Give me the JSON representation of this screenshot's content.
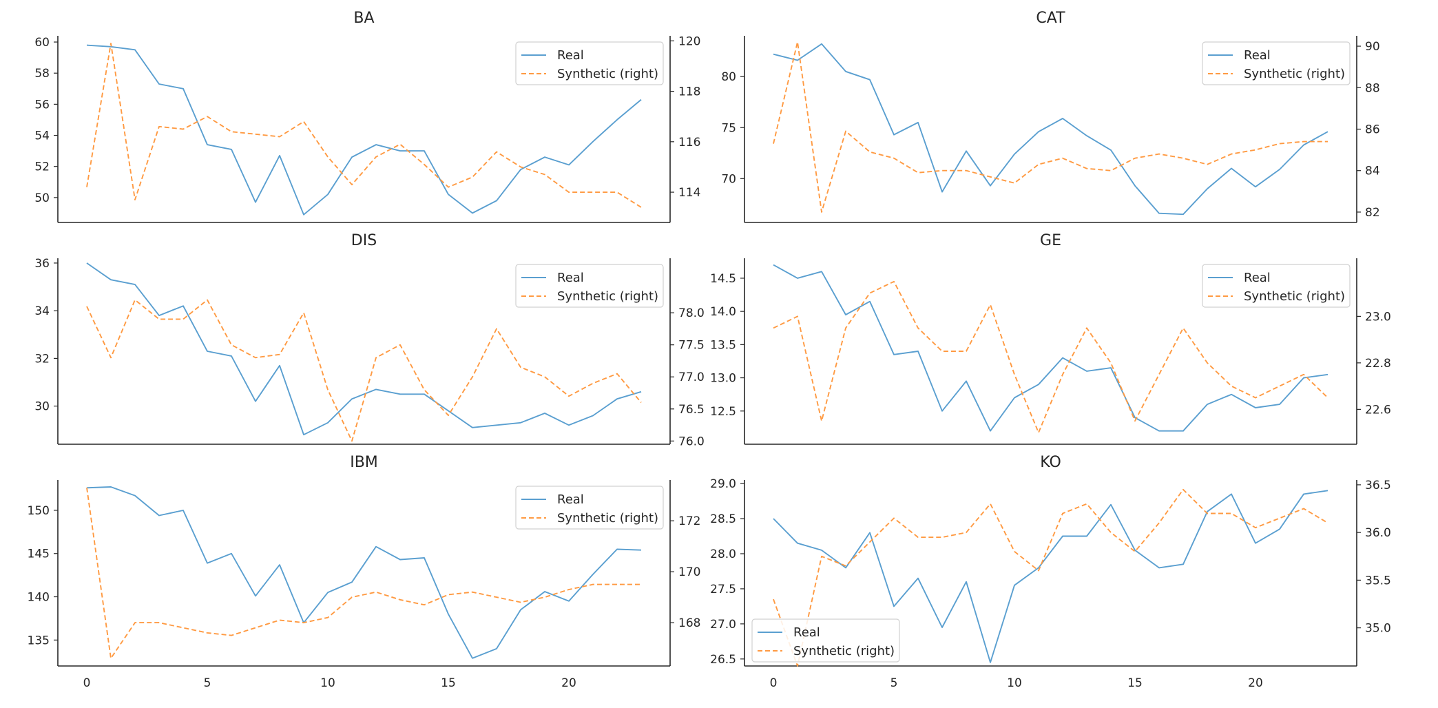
{
  "colors": {
    "real": "#5a9fd0",
    "synthetic": "#ff9a42",
    "axis": "#262626",
    "legend_border": "#d0d0d0"
  },
  "legend_labels": {
    "real": "Real",
    "synthetic": "Synthetic (right)"
  },
  "chart_data": [
    {
      "type": "line",
      "title": "BA",
      "legend_loc": "upper right",
      "x": [
        0,
        1,
        2,
        3,
        4,
        5,
        6,
        7,
        8,
        9,
        10,
        11,
        12,
        13,
        14,
        15,
        16,
        17,
        18,
        19,
        20,
        21,
        22,
        23
      ],
      "xlim": [
        -1.2,
        24.2
      ],
      "xticks": [
        0,
        5,
        10,
        15,
        20
      ],
      "left": {
        "ylim": [
          48.4,
          60.4
        ],
        "ticks": [
          50,
          52,
          54,
          56,
          58,
          60
        ],
        "tick_labels": [
          "50",
          "52",
          "54",
          "56",
          "58",
          "60"
        ]
      },
      "right": {
        "ylim": [
          112.8,
          120.2
        ],
        "ticks": [
          114,
          116,
          118,
          120
        ],
        "tick_labels": [
          "114",
          "116",
          "118",
          "120"
        ]
      },
      "series": [
        {
          "name": "Real",
          "axis": "left",
          "style": "solid",
          "values": [
            59.8,
            59.7,
            59.5,
            57.3,
            57.0,
            53.4,
            53.1,
            49.7,
            52.7,
            48.9,
            50.2,
            52.6,
            53.4,
            53.0,
            53.0,
            50.2,
            49.0,
            49.8,
            51.8,
            52.6,
            52.1,
            53.6,
            55.0,
            56.3
          ]
        },
        {
          "name": "Synthetic (right)",
          "axis": "left",
          "style": "dashed",
          "axis_override": "right",
          "values": [
            114.2,
            119.9,
            113.7,
            116.6,
            116.5,
            117.0,
            116.4,
            116.3,
            116.2,
            116.8,
            115.4,
            114.3,
            115.4,
            115.9,
            115.1,
            114.2,
            114.6,
            115.6,
            115.0,
            114.7,
            114.0,
            114.0,
            114.0,
            113.4
          ]
        }
      ]
    },
    {
      "type": "line",
      "title": "CAT",
      "legend_loc": "upper right",
      "x": [
        0,
        1,
        2,
        3,
        4,
        5,
        6,
        7,
        8,
        9,
        10,
        11,
        12,
        13,
        14,
        15,
        16,
        17,
        18,
        19,
        20,
        21,
        22,
        23
      ],
      "xlim": [
        -1.2,
        24.2
      ],
      "xticks": [
        0,
        5,
        10,
        15,
        20
      ],
      "left": {
        "ylim": [
          65.7,
          84.0
        ],
        "ticks": [
          70,
          75,
          80
        ],
        "tick_labels": [
          "70",
          "75",
          "80"
        ]
      },
      "right": {
        "ylim": [
          81.5,
          90.5
        ],
        "ticks": [
          82,
          84,
          86,
          88,
          90
        ],
        "tick_labels": [
          "82",
          "84",
          "86",
          "88",
          "90"
        ]
      },
      "series": [
        {
          "name": "Real",
          "axis": "left",
          "style": "solid",
          "values": [
            82.2,
            81.6,
            83.2,
            80.5,
            79.7,
            74.3,
            75.5,
            68.7,
            72.7,
            69.3,
            72.4,
            74.6,
            75.9,
            74.2,
            72.8,
            69.3,
            66.6,
            66.5,
            69.0,
            71.0,
            69.2,
            70.9,
            73.3,
            74.6
          ]
        },
        {
          "name": "Synthetic (right)",
          "axis": "right",
          "style": "dashed",
          "values": [
            85.3,
            90.2,
            82.0,
            85.9,
            84.9,
            84.6,
            83.9,
            84.0,
            84.0,
            83.7,
            83.4,
            84.3,
            84.6,
            84.1,
            84.0,
            84.6,
            84.8,
            84.6,
            84.3,
            84.8,
            85.0,
            85.3,
            85.4,
            85.4
          ]
        }
      ]
    },
    {
      "type": "line",
      "title": "DIS",
      "legend_loc": "upper right",
      "x": [
        0,
        1,
        2,
        3,
        4,
        5,
        6,
        7,
        8,
        9,
        10,
        11,
        12,
        13,
        14,
        15,
        16,
        17,
        18,
        19,
        20,
        21,
        22,
        23
      ],
      "xlim": [
        -1.2,
        24.2
      ],
      "xticks": [
        0,
        5,
        10,
        15,
        20
      ],
      "left": {
        "ylim": [
          28.4,
          36.2
        ],
        "ticks": [
          30,
          32,
          34,
          36
        ],
        "tick_labels": [
          "30",
          "32",
          "34",
          "36"
        ]
      },
      "right": {
        "ylim": [
          75.95,
          78.85
        ],
        "ticks": [
          76.0,
          76.5,
          77.0,
          77.5,
          78.0
        ],
        "tick_labels": [
          "76.0",
          "76.5",
          "77.0",
          "77.5",
          "78.0"
        ]
      },
      "series": [
        {
          "name": "Real",
          "axis": "left",
          "style": "solid",
          "values": [
            36.0,
            35.3,
            35.1,
            33.8,
            34.2,
            32.3,
            32.1,
            30.2,
            31.7,
            28.8,
            29.3,
            30.3,
            30.7,
            30.5,
            30.5,
            29.8,
            29.1,
            29.2,
            29.3,
            29.7,
            29.2,
            29.6,
            30.3,
            30.6
          ]
        },
        {
          "name": "Synthetic (right)",
          "axis": "right",
          "style": "dashed",
          "values": [
            78.1,
            77.3,
            78.2,
            77.9,
            77.9,
            78.2,
            77.5,
            77.3,
            77.35,
            78.0,
            76.8,
            76.0,
            77.3,
            77.5,
            76.8,
            76.4,
            77.0,
            77.75,
            77.15,
            77.0,
            76.7,
            76.9,
            77.05,
            76.6
          ]
        }
      ]
    },
    {
      "type": "line",
      "title": "GE",
      "legend_loc": "upper right",
      "x": [
        0,
        1,
        2,
        3,
        4,
        5,
        6,
        7,
        8,
        9,
        10,
        11,
        12,
        13,
        14,
        15,
        16,
        17,
        18,
        19,
        20,
        21,
        22,
        23
      ],
      "xlim": [
        -1.2,
        24.2
      ],
      "xticks": [
        0,
        5,
        10,
        15,
        20
      ],
      "left": {
        "ylim": [
          12.0,
          14.8
        ],
        "ticks": [
          12.5,
          13.0,
          13.5,
          14.0,
          14.5
        ],
        "tick_labels": [
          "12.5",
          "13.0",
          "13.5",
          "14.0",
          "14.5"
        ]
      },
      "right": {
        "ylim": [
          22.45,
          23.25
        ],
        "ticks": [
          22.6,
          22.8,
          23.0
        ],
        "tick_labels": [
          "22.6",
          "22.8",
          "23.0"
        ]
      },
      "series": [
        {
          "name": "Real",
          "axis": "left",
          "style": "solid",
          "values": [
            14.7,
            14.5,
            14.6,
            13.95,
            14.15,
            13.35,
            13.4,
            12.5,
            12.95,
            12.2,
            12.7,
            12.9,
            13.3,
            13.1,
            13.15,
            12.4,
            12.2,
            12.2,
            12.6,
            12.75,
            12.55,
            12.6,
            13.0,
            13.05
          ]
        },
        {
          "name": "Synthetic (right)",
          "axis": "right",
          "style": "dashed",
          "values": [
            22.95,
            23.0,
            22.55,
            22.95,
            23.1,
            23.15,
            22.95,
            22.85,
            22.85,
            23.05,
            22.75,
            22.5,
            22.75,
            22.95,
            22.8,
            22.55,
            22.75,
            22.95,
            22.8,
            22.7,
            22.65,
            22.7,
            22.75,
            22.65
          ]
        }
      ]
    },
    {
      "type": "line",
      "title": "IBM",
      "legend_loc": "upper right",
      "x": [
        0,
        1,
        2,
        3,
        4,
        5,
        6,
        7,
        8,
        9,
        10,
        11,
        12,
        13,
        14,
        15,
        16,
        17,
        18,
        19,
        20,
        21,
        22,
        23
      ],
      "xlim": [
        -1.2,
        24.2
      ],
      "xticks": [
        0,
        5,
        10,
        15,
        20
      ],
      "left": {
        "ylim": [
          132.0,
          153.5
        ],
        "ticks": [
          135,
          140,
          145,
          150
        ],
        "tick_labels": [
          "135",
          "140",
          "145",
          "150"
        ]
      },
      "right": {
        "ylim": [
          166.3,
          173.6
        ],
        "ticks": [
          168,
          170,
          172
        ],
        "tick_labels": [
          "168",
          "170",
          "172"
        ]
      },
      "series": [
        {
          "name": "Real",
          "axis": "left",
          "style": "solid",
          "values": [
            152.6,
            152.7,
            151.7,
            149.4,
            150.0,
            143.9,
            145.0,
            140.1,
            143.7,
            137.0,
            140.5,
            141.7,
            145.8,
            144.3,
            144.5,
            138.0,
            132.9,
            134.0,
            138.5,
            140.6,
            139.5,
            142.6,
            145.5,
            145.4
          ]
        },
        {
          "name": "Synthetic (right)",
          "axis": "right",
          "style": "dashed",
          "values": [
            173.3,
            166.6,
            168.0,
            168.0,
            167.8,
            167.6,
            167.5,
            167.8,
            168.1,
            168.0,
            168.2,
            169.0,
            169.2,
            168.9,
            168.7,
            169.1,
            169.2,
            169.0,
            168.8,
            169.0,
            169.3,
            169.5,
            169.5,
            169.5
          ]
        }
      ]
    },
    {
      "type": "line",
      "title": "KO",
      "legend_loc": "lower left",
      "x": [
        0,
        1,
        2,
        3,
        4,
        5,
        6,
        7,
        8,
        9,
        10,
        11,
        12,
        13,
        14,
        15,
        16,
        17,
        18,
        19,
        20,
        21,
        22,
        23
      ],
      "xlim": [
        -1.2,
        24.2
      ],
      "xticks": [
        0,
        5,
        10,
        15,
        20
      ],
      "left": {
        "ylim": [
          26.4,
          29.05
        ],
        "ticks": [
          26.5,
          27.0,
          27.5,
          28.0,
          28.5,
          29.0
        ],
        "tick_labels": [
          "26.5",
          "27.0",
          "27.5",
          "28.0",
          "28.5",
          "29.0"
        ]
      },
      "right": {
        "ylim": [
          34.6,
          36.55
        ],
        "ticks": [
          35.0,
          35.5,
          36.0,
          36.5
        ],
        "tick_labels": [
          "35.0",
          "35.5",
          "36.0",
          "36.5"
        ]
      },
      "series": [
        {
          "name": "Real",
          "axis": "left",
          "style": "solid",
          "values": [
            28.5,
            28.15,
            28.05,
            27.8,
            28.3,
            27.25,
            27.65,
            26.95,
            27.6,
            26.45,
            27.55,
            27.8,
            28.25,
            28.25,
            28.7,
            28.05,
            27.8,
            27.85,
            28.6,
            28.85,
            28.15,
            28.35,
            28.85,
            28.9
          ]
        },
        {
          "name": "Synthetic (right)",
          "axis": "right",
          "style": "dashed",
          "values": [
            35.3,
            34.6,
            35.75,
            35.65,
            35.9,
            36.15,
            35.95,
            35.95,
            36.0,
            36.3,
            35.8,
            35.6,
            36.2,
            36.3,
            36.0,
            35.8,
            36.1,
            36.45,
            36.2,
            36.2,
            36.05,
            36.15,
            36.25,
            36.1
          ]
        }
      ]
    }
  ]
}
